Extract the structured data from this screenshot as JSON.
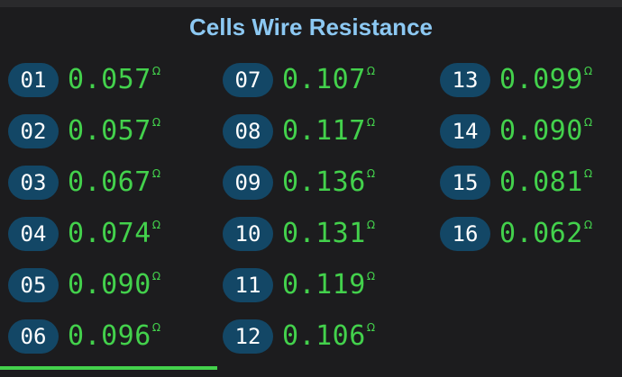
{
  "title": "Cells Wire Resistance",
  "unit": "Ω",
  "colors": {
    "background": "#1c1c1e",
    "title": "#8cc8f2",
    "badge": "#134766",
    "value": "#43d14c"
  },
  "cells": [
    {
      "id": "01",
      "value": "0.057"
    },
    {
      "id": "02",
      "value": "0.057"
    },
    {
      "id": "03",
      "value": "0.067"
    },
    {
      "id": "04",
      "value": "0.074"
    },
    {
      "id": "05",
      "value": "0.090"
    },
    {
      "id": "06",
      "value": "0.096"
    },
    {
      "id": "07",
      "value": "0.107"
    },
    {
      "id": "08",
      "value": "0.117"
    },
    {
      "id": "09",
      "value": "0.136"
    },
    {
      "id": "10",
      "value": "0.131"
    },
    {
      "id": "11",
      "value": "0.119"
    },
    {
      "id": "12",
      "value": "0.106"
    },
    {
      "id": "13",
      "value": "0.099"
    },
    {
      "id": "14",
      "value": "0.090"
    },
    {
      "id": "15",
      "value": "0.081"
    },
    {
      "id": "16",
      "value": "0.062"
    }
  ]
}
